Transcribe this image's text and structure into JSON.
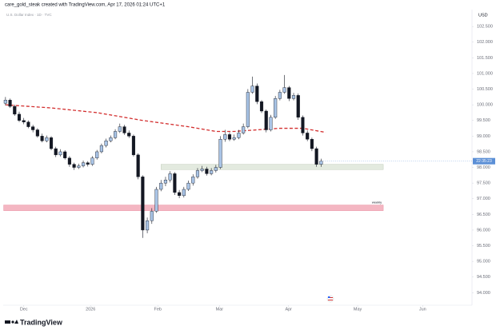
{
  "chart_data": {
    "type": "candlestick",
    "header": "care_gold_steak created with TradingView.com, Apr 17, 2026 01:24 UTC+1",
    "symbol": "U.S. Dollar Index · 1D · TVC",
    "currency": "USD",
    "brand": "TradingView",
    "countdown": "22:35:23",
    "zone_label": "weekly",
    "up_color": "#a9c4e6",
    "down_color": "#131722",
    "ma_color": "#d32f2f",
    "xlim": [
      -0.5,
      102
    ],
    "ylim": [
      93.6,
      103.04
    ],
    "xticks": [
      {
        "value": 4,
        "label": "Dec"
      },
      {
        "value": 18.6,
        "label": "2026"
      },
      {
        "value": 33.3,
        "label": "Feb"
      },
      {
        "value": 46.8,
        "label": "Mar"
      },
      {
        "value": 61.9,
        "label": "Apr"
      },
      {
        "value": 77,
        "label": "May"
      },
      {
        "value": 91.2,
        "label": "Jun"
      }
    ],
    "yticks": [
      {
        "value": 94,
        "label": "94.000"
      },
      {
        "value": 94.5,
        "label": "94.500"
      },
      {
        "value": 95,
        "label": "95.000"
      },
      {
        "value": 95.5,
        "label": "95.500"
      },
      {
        "value": 96,
        "label": "96.000"
      },
      {
        "value": 96.5,
        "label": "96.500"
      },
      {
        "value": 97,
        "label": "97.000"
      },
      {
        "value": 97.5,
        "label": "97.500"
      },
      {
        "value": 98,
        "label": "98.000"
      },
      {
        "value": 98.5,
        "label": "98.500"
      },
      {
        "value": 99,
        "label": "99.000"
      },
      {
        "value": 99.5,
        "label": "99.500"
      },
      {
        "value": 100,
        "label": "100.000"
      },
      {
        "value": 100.5,
        "label": "100.500"
      },
      {
        "value": 101,
        "label": "101.000"
      },
      {
        "value": 101.5,
        "label": "101.500"
      },
      {
        "value": 102,
        "label": "102.000"
      },
      {
        "value": 102.5,
        "label": "102.500"
      }
    ],
    "candles": [
      [
        100.05,
        100.25,
        99.98,
        100.15
      ],
      [
        100.15,
        100.2,
        99.9,
        99.95
      ],
      [
        99.95,
        100.0,
        99.65,
        99.7
      ],
      [
        99.7,
        99.78,
        99.45,
        99.5
      ],
      [
        99.5,
        99.58,
        99.38,
        99.45
      ],
      [
        99.45,
        99.5,
        99.25,
        99.3
      ],
      [
        99.3,
        99.36,
        99.12,
        99.2
      ],
      [
        99.2,
        99.25,
        98.95,
        99.0
      ],
      [
        99.0,
        99.08,
        98.8,
        98.85
      ],
      [
        98.85,
        99.02,
        98.8,
        98.95
      ],
      [
        98.95,
        99.0,
        98.55,
        98.6
      ],
      [
        98.6,
        98.66,
        98.33,
        98.4
      ],
      [
        98.4,
        98.58,
        98.35,
        98.5
      ],
      [
        98.5,
        98.55,
        98.25,
        98.3
      ],
      [
        98.3,
        98.36,
        98.02,
        98.1
      ],
      [
        98.1,
        98.15,
        97.92,
        98.0
      ],
      [
        98.0,
        98.12,
        97.95,
        98.05
      ],
      [
        98.05,
        98.22,
        98.0,
        98.15
      ],
      [
        98.15,
        98.2,
        98.03,
        98.1
      ],
      [
        98.1,
        98.36,
        98.05,
        98.3
      ],
      [
        98.3,
        98.56,
        98.25,
        98.5
      ],
      [
        98.5,
        98.76,
        98.45,
        98.7
      ],
      [
        98.7,
        98.92,
        98.64,
        98.85
      ],
      [
        98.85,
        99.02,
        98.8,
        98.95
      ],
      [
        98.95,
        99.22,
        98.9,
        99.15
      ],
      [
        99.15,
        99.4,
        99.1,
        99.3
      ],
      [
        99.3,
        99.36,
        99.04,
        99.1
      ],
      [
        99.1,
        99.18,
        98.94,
        99.0
      ],
      [
        99.0,
        99.05,
        98.35,
        98.4
      ],
      [
        98.4,
        98.45,
        97.62,
        97.7
      ],
      [
        97.7,
        97.75,
        95.75,
        96.0
      ],
      [
        96.0,
        96.4,
        95.9,
        96.3
      ],
      [
        96.3,
        96.7,
        96.2,
        96.6
      ],
      [
        96.6,
        97.38,
        96.55,
        97.3
      ],
      [
        97.3,
        97.6,
        97.24,
        97.5
      ],
      [
        97.5,
        97.7,
        97.4,
        97.6
      ],
      [
        97.6,
        97.88,
        97.52,
        97.8
      ],
      [
        97.8,
        97.85,
        97.12,
        97.2
      ],
      [
        97.2,
        97.28,
        97.02,
        97.1
      ],
      [
        97.1,
        97.38,
        97.04,
        97.3
      ],
      [
        97.3,
        97.58,
        97.25,
        97.5
      ],
      [
        97.5,
        97.78,
        97.42,
        97.7
      ],
      [
        97.7,
        97.98,
        97.64,
        97.9
      ],
      [
        97.9,
        98.05,
        97.85,
        97.95
      ],
      [
        97.95,
        98.02,
        97.74,
        97.8
      ],
      [
        97.8,
        97.98,
        97.75,
        97.9
      ],
      [
        97.9,
        98.08,
        97.84,
        98.0
      ],
      [
        98.0,
        99.0,
        97.95,
        98.9
      ],
      [
        98.9,
        99.2,
        98.82,
        99.05
      ],
      [
        99.05,
        99.12,
        98.84,
        98.9
      ],
      [
        98.9,
        99.05,
        98.85,
        98.95
      ],
      [
        98.95,
        99.2,
        98.9,
        99.1
      ],
      [
        99.1,
        99.4,
        99.05,
        99.3
      ],
      [
        99.3,
        100.5,
        99.25,
        100.4
      ],
      [
        100.4,
        100.9,
        100.35,
        100.6
      ],
      [
        100.6,
        100.68,
        100.02,
        100.1
      ],
      [
        100.1,
        100.15,
        99.74,
        99.8
      ],
      [
        99.8,
        99.85,
        99.12,
        99.2
      ],
      [
        99.2,
        99.68,
        99.15,
        99.6
      ],
      [
        99.6,
        100.28,
        99.55,
        100.2
      ],
      [
        100.2,
        100.48,
        100.14,
        100.4
      ],
      [
        100.4,
        100.95,
        100.35,
        100.55
      ],
      [
        100.55,
        100.6,
        100.12,
        100.2
      ],
      [
        100.2,
        100.38,
        100.14,
        100.3
      ],
      [
        100.3,
        100.36,
        99.52,
        99.6
      ],
      [
        99.6,
        99.66,
        99.02,
        99.1
      ],
      [
        99.1,
        99.18,
        98.84,
        98.9
      ],
      [
        98.9,
        98.95,
        98.52,
        98.6
      ],
      [
        98.6,
        98.66,
        98.02,
        98.1
      ],
      [
        98.1,
        98.28,
        98.02,
        98.2
      ]
    ],
    "ma": {
      "x": [
        0,
        10,
        20,
        30,
        40,
        46,
        50,
        60,
        65,
        70
      ],
      "values": [
        100.0,
        99.9,
        99.75,
        99.5,
        99.3,
        99.15,
        99.15,
        99.25,
        99.25,
        99.12
      ]
    },
    "zones": [
      {
        "from": 34,
        "to": 82.6,
        "top": 98.1,
        "bottom": 97.93,
        "color": "#e3eadf"
      },
      {
        "from": -0.4,
        "to": 82.6,
        "top": 96.8,
        "bottom": 96.62,
        "color": "#f4b6c2"
      }
    ]
  }
}
